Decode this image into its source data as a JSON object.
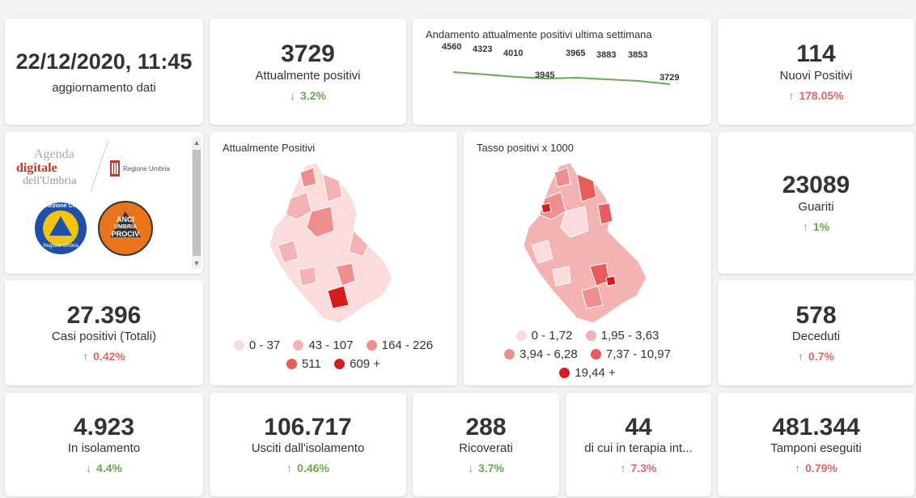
{
  "date_card": {
    "datetime": "22/12/2020, 11:45",
    "label": "aggiornamento dati"
  },
  "attualmente_positivi": {
    "value": "3729",
    "label": "Attualmente positivi",
    "arrow": "↓",
    "delta": "3.2%"
  },
  "trend": {
    "title": "Andamento attualmente positivi ultima settimana",
    "values": [
      "4560",
      "4323",
      "4010",
      "3945",
      "3965",
      "3883",
      "3853",
      "3729"
    ]
  },
  "nuovi_positivi": {
    "value": "114",
    "label": "Nuovi Positivi",
    "arrow": "↑",
    "delta": "178.05%"
  },
  "logos": {
    "agenda_line1": "Agenda",
    "agenda_line2": "digitale",
    "agenda_line3": "dell'Umbria",
    "regione": "Regione Umbria",
    "protezione": "Protezione Civile",
    "protezione_sub": "Regione Umbria",
    "anci_1": "ANCI",
    "anci_2": "UMBRIA",
    "anci_3": "PROCIV"
  },
  "map1": {
    "title": "Attualmente Positivi",
    "legend": [
      "0 - 37",
      "43 - 107",
      "164 - 226",
      "511",
      "609 +"
    ]
  },
  "map2": {
    "title": "Tasso positivi x 1000",
    "legend": [
      "0 - 1,72",
      "1,95 - 3,63",
      "3,94 - 6,28",
      "7,37 - 10,97",
      "19,44 +"
    ]
  },
  "legend_colors": [
    "#fadcdc",
    "#f4b3b3",
    "#ee8e8e",
    "#e85c5c",
    "#d81c1c"
  ],
  "guariti": {
    "value": "23089",
    "label": "Guariti",
    "arrow": "↑",
    "delta": "1%"
  },
  "casi_totali": {
    "value": "27.396",
    "label": "Casi positivi (Totali)",
    "arrow": "↑",
    "delta": "0.42%"
  },
  "deceduti": {
    "value": "578",
    "label": "Deceduti",
    "arrow": "↑",
    "delta": "0.7%"
  },
  "isolamento": {
    "value": "4.923",
    "label": "In isolamento",
    "arrow": "↓",
    "delta": "4.4%"
  },
  "usciti": {
    "value": "106.717",
    "label": "Usciti dall'isolamento",
    "arrow": "↑",
    "delta": "0.46%"
  },
  "ricoverati": {
    "value": "288",
    "label": "Ricoverati",
    "arrow": "↓",
    "delta": "3.7%"
  },
  "terapia": {
    "value": "44",
    "label": "di cui in terapia int...",
    "arrow": "↑",
    "delta": "7.3%"
  },
  "tamponi": {
    "value": "481.344",
    "label": "Tamponi eseguiti",
    "arrow": "↑",
    "delta": "0.79%"
  },
  "colors": {
    "up": "#e06666",
    "down": "#6aa84f",
    "trend_line": "#6aa84f"
  }
}
